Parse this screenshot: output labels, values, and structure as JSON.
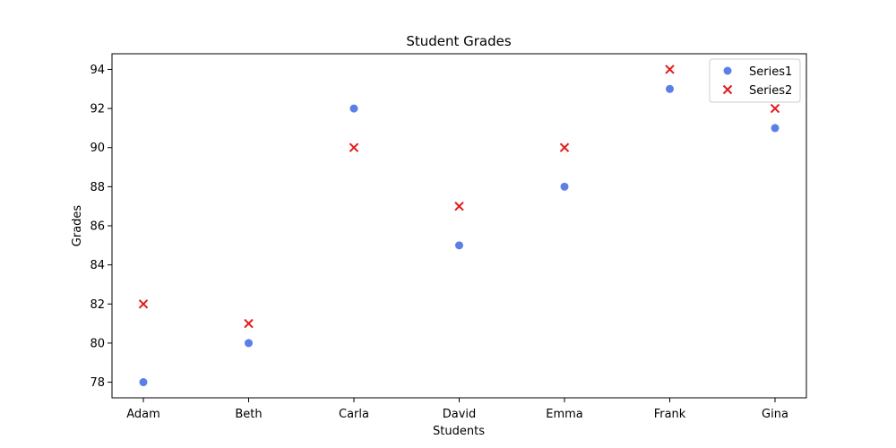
{
  "chart_data": {
    "type": "scatter",
    "title": "Student Grades",
    "xlabel": "Students",
    "ylabel": "Grades",
    "categories": [
      "Adam",
      "Beth",
      "Carla",
      "David",
      "Emma",
      "Frank",
      "Gina"
    ],
    "series": [
      {
        "name": "Series1",
        "marker": "circle",
        "color": "#5b7fe8",
        "values": [
          78,
          80,
          92,
          85,
          88,
          93,
          91
        ]
      },
      {
        "name": "Series2",
        "marker": "x",
        "color": "#e41a1c",
        "values": [
          82,
          81,
          90,
          87,
          90,
          94,
          92
        ]
      }
    ],
    "ylim": [
      77.2,
      94.8
    ],
    "yticks": [
      78,
      80,
      82,
      84,
      86,
      88,
      90,
      92,
      94
    ],
    "grid": false,
    "legend_position": "top-right"
  }
}
